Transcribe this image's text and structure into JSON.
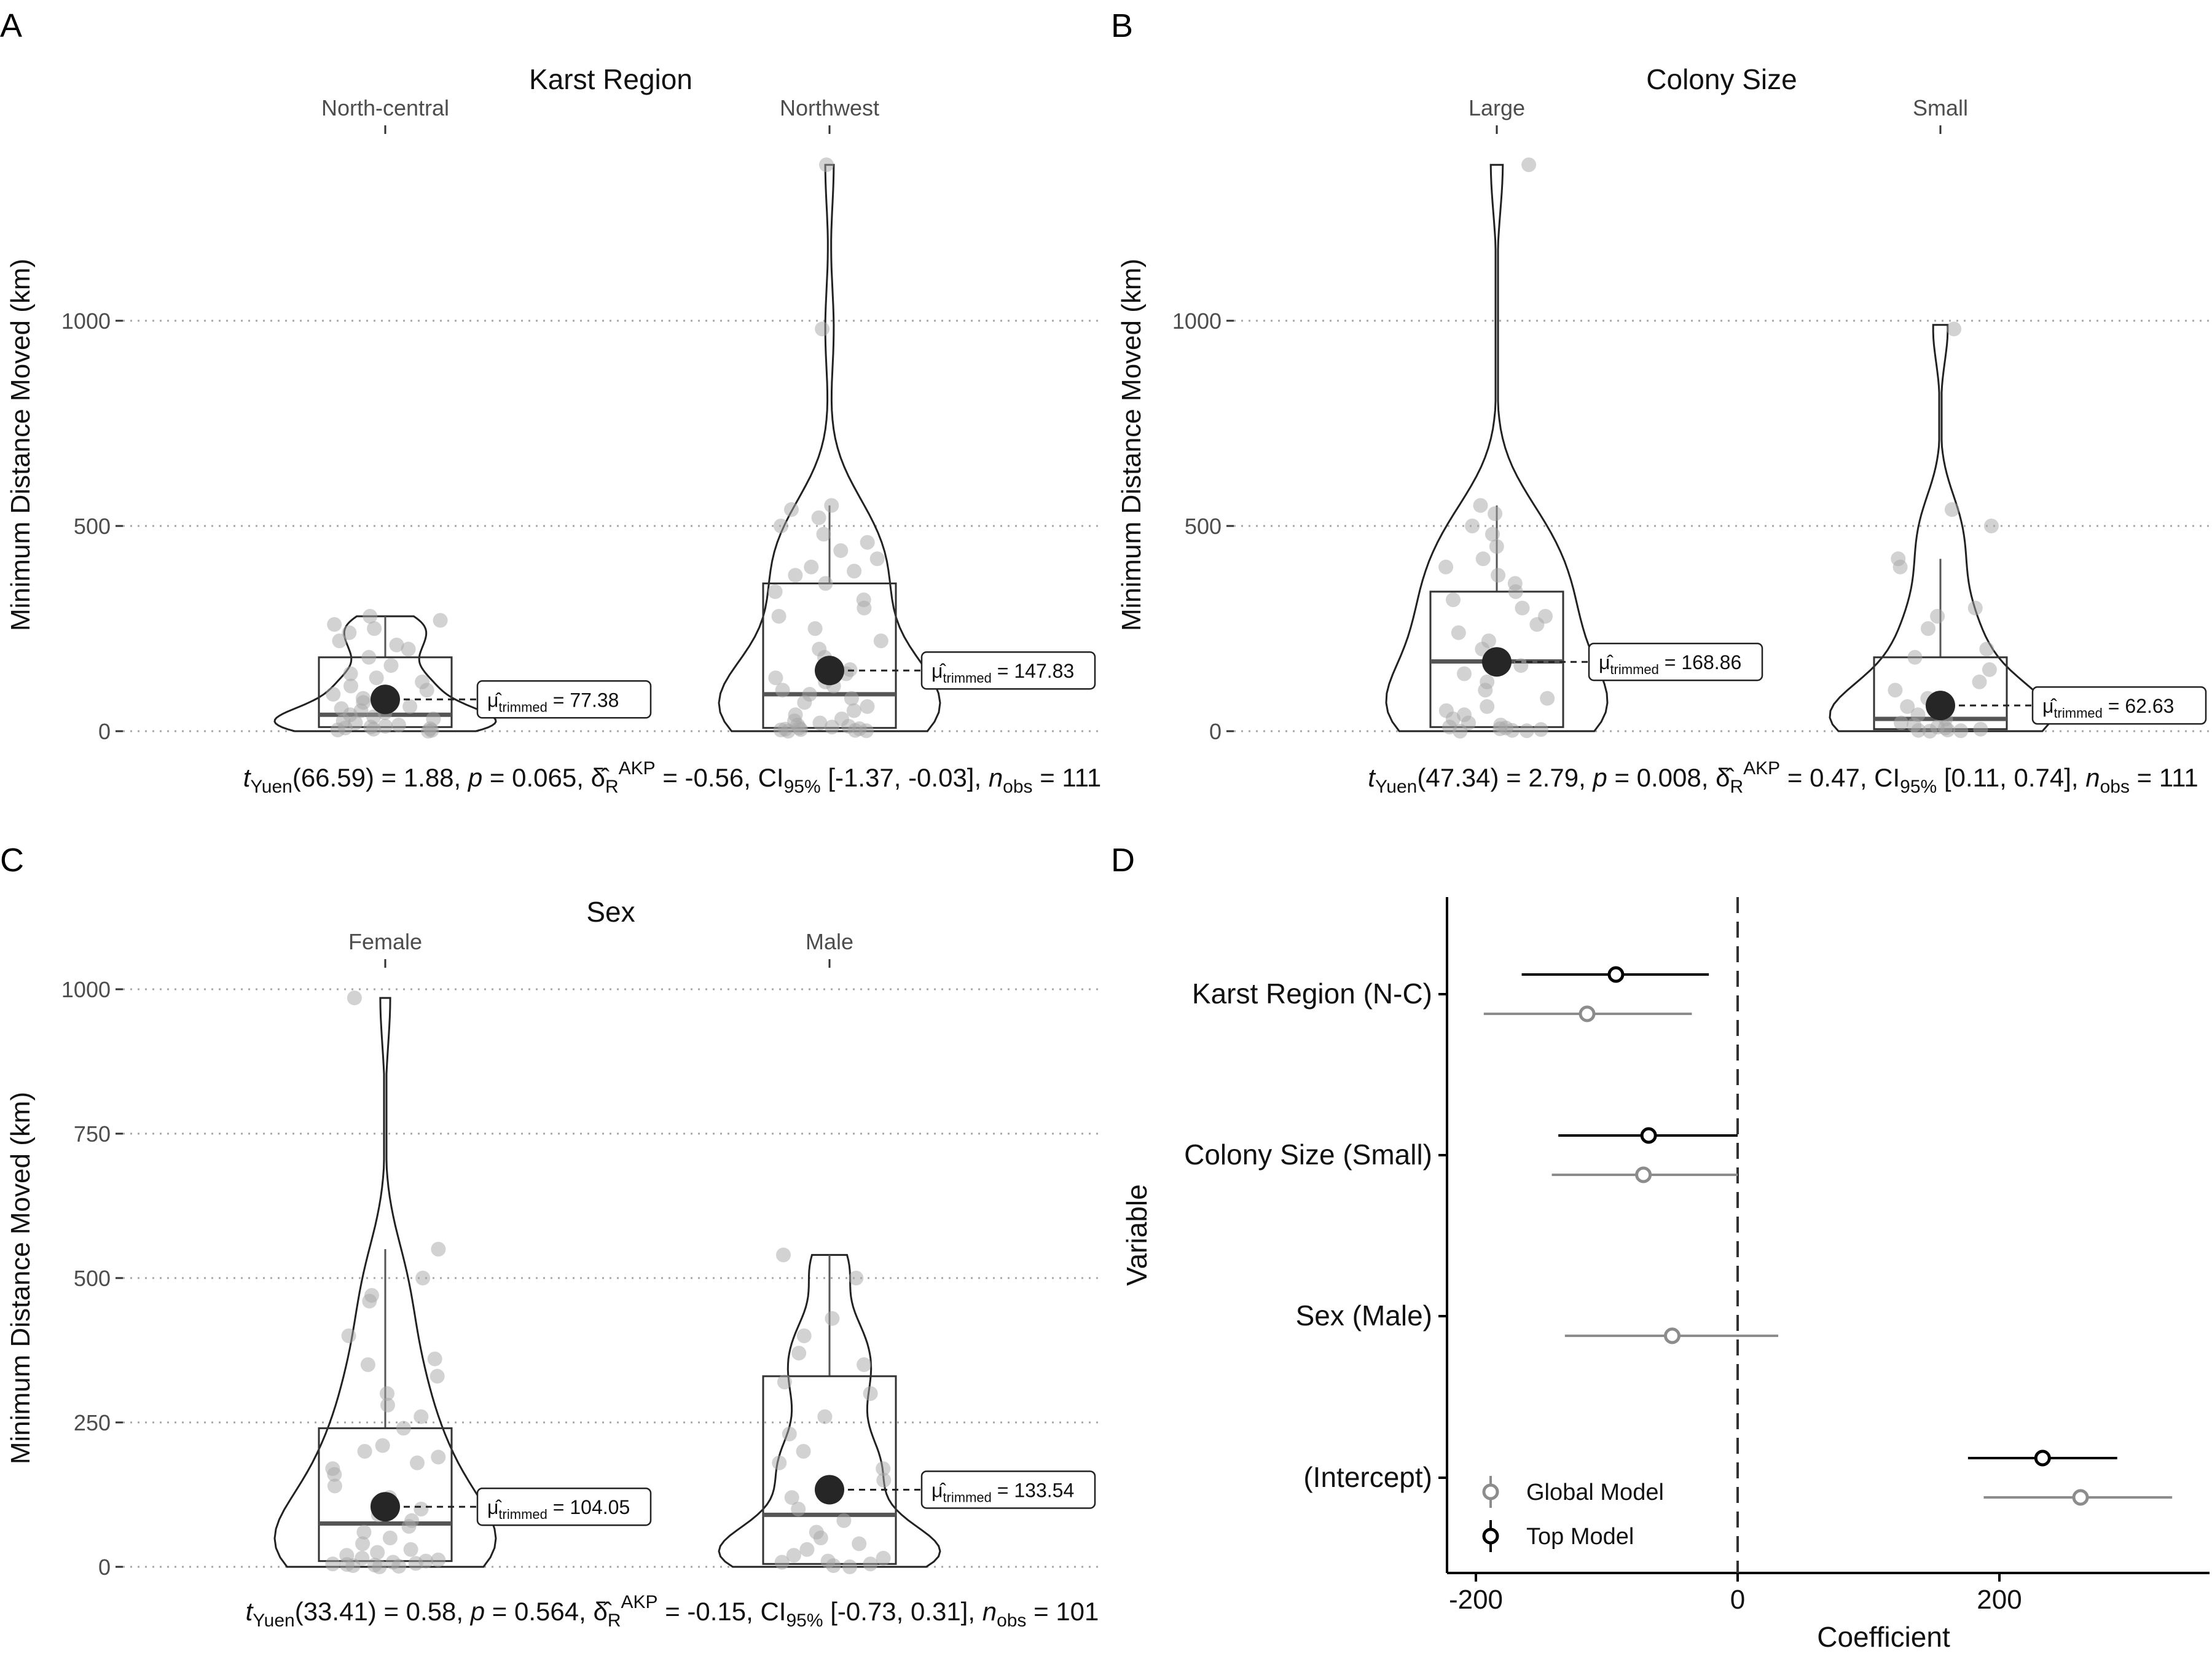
{
  "figure": {
    "panel_letters": [
      "A",
      "B",
      "C",
      "D"
    ]
  },
  "colors": {
    "point": "#a6a6a6",
    "mean": "#262626",
    "box": "#333333",
    "median": "#555555",
    "grid": "#a8a8a8",
    "global_model": "#8c8c8c",
    "top_model": "#000000"
  },
  "chart_data": [
    {
      "type": "violin-box",
      "panel": "A",
      "title": "Karst Region",
      "ylabel": "Minimum Distance Moved (km)",
      "ylim": [
        0,
        1400
      ],
      "yticks": [
        0,
        500,
        1000
      ],
      "grid": "horizontal-dotted",
      "categories": [
        "North-central",
        "Northwest"
      ],
      "box": [
        {
          "q1": 10,
          "median": 40,
          "q3": 180,
          "whisker_high": 280
        },
        {
          "q1": 8,
          "median": 90,
          "q3": 360,
          "whisker_high": 550
        }
      ],
      "violin_max": [
        280,
        1380
      ],
      "trimmed_means": [
        77.38,
        147.83
      ],
      "mean_labels": [
        "= 77.38",
        "= 147.83"
      ],
      "points": [
        [
          0,
          2,
          3,
          5,
          6,
          8,
          10,
          12,
          15,
          20,
          25,
          30,
          35,
          40,
          45,
          50,
          55,
          60,
          70,
          80,
          90,
          100,
          110,
          120,
          130,
          140,
          160,
          180,
          200,
          210,
          220,
          240,
          250,
          260,
          270,
          280
        ],
        [
          0,
          1,
          2,
          3,
          4,
          5,
          6,
          8,
          10,
          12,
          15,
          20,
          25,
          30,
          40,
          50,
          60,
          70,
          80,
          90,
          100,
          110,
          120,
          130,
          140,
          150,
          160,
          180,
          200,
          220,
          250,
          280,
          300,
          320,
          340,
          360,
          380,
          390,
          400,
          420,
          440,
          460,
          480,
          500,
          520,
          540,
          550,
          980,
          1380
        ]
      ],
      "statistic": {
        "t_sub": "Yuen",
        "df": "66.59",
        "t": "1.88",
        "p": "0.065",
        "delta": "-0.56",
        "ci": "[-1.37, -0.03]",
        "n": "111"
      }
    },
    {
      "type": "violin-box",
      "panel": "B",
      "title": "Colony Size",
      "ylabel": "Minimum Distance Moved (km)",
      "ylim": [
        0,
        1400
      ],
      "yticks": [
        0,
        500,
        1000
      ],
      "grid": "horizontal-dotted",
      "categories": [
        "Large",
        "Small"
      ],
      "box": [
        {
          "q1": 10,
          "median": 170,
          "q3": 340,
          "whisker_high": 550
        },
        {
          "q1": 5,
          "median": 30,
          "q3": 180,
          "whisker_high": 420
        }
      ],
      "violin_max": [
        1380,
        990
      ],
      "trimmed_means": [
        168.86,
        62.63
      ],
      "mean_labels": [
        "= 168.86",
        "= 62.63"
      ],
      "points": [
        [
          0,
          1,
          2,
          4,
          6,
          8,
          10,
          15,
          20,
          30,
          40,
          50,
          60,
          80,
          100,
          120,
          140,
          160,
          180,
          200,
          220,
          240,
          260,
          280,
          300,
          320,
          340,
          360,
          380,
          400,
          420,
          450,
          480,
          500,
          530,
          550,
          1380
        ],
        [
          0,
          1,
          2,
          3,
          5,
          8,
          10,
          15,
          20,
          30,
          40,
          50,
          60,
          80,
          100,
          120,
          150,
          180,
          200,
          250,
          280,
          300,
          400,
          420,
          500,
          540,
          980
        ]
      ],
      "statistic": {
        "t_sub": "Yuen",
        "df": "47.34",
        "t": "2.79",
        "p": "0.008",
        "delta": "0.47",
        "ci": "[0.11, 0.74]",
        "n": "111"
      }
    },
    {
      "type": "violin-box",
      "panel": "C",
      "title": "Sex",
      "ylabel": "Minimum Distance Moved (km)",
      "ylim": [
        0,
        1000
      ],
      "yticks": [
        0,
        250,
        500,
        750,
        1000
      ],
      "grid": "horizontal-dotted",
      "categories": [
        "Female",
        "Male"
      ],
      "box": [
        {
          "q1": 10,
          "median": 75,
          "q3": 240,
          "whisker_high": 550
        },
        {
          "q1": 5,
          "median": 90,
          "q3": 330,
          "whisker_high": 540
        }
      ],
      "violin_max": [
        985,
        540
      ],
      "trimmed_means": [
        104.05,
        133.54
      ],
      "mean_labels": [
        "= 104.05",
        "= 133.54"
      ],
      "points": [
        [
          0,
          1,
          2,
          3,
          4,
          5,
          6,
          8,
          10,
          12,
          15,
          20,
          25,
          30,
          40,
          50,
          60,
          70,
          80,
          90,
          100,
          110,
          120,
          140,
          160,
          170,
          180,
          190,
          200,
          210,
          240,
          260,
          280,
          300,
          330,
          350,
          360,
          400,
          460,
          470,
          500,
          550,
          985
        ],
        [
          0,
          2,
          5,
          8,
          10,
          15,
          20,
          30,
          40,
          50,
          60,
          80,
          100,
          120,
          150,
          170,
          180,
          200,
          230,
          260,
          300,
          320,
          350,
          370,
          400,
          430,
          500,
          540
        ]
      ],
      "statistic": {
        "t_sub": "Yuen",
        "df": "33.41",
        "t": "0.58",
        "p": "0.564",
        "delta": "-0.15",
        "ci": "[-0.73, 0.31]",
        "n": "101"
      }
    },
    {
      "type": "coefficient-plot",
      "panel": "D",
      "xlabel": "Coefficient",
      "ylabel": "Variable",
      "xlim": [
        -200,
        360
      ],
      "xticks": [
        -200,
        0,
        200
      ],
      "reference_line": 0,
      "categories": [
        "Karst Region (N-C)",
        "Colony Size (Small)",
        "Sex (Male)",
        "(Intercept)"
      ],
      "series": [
        {
          "name": "Top Model",
          "estimates": [
            -93,
            -68,
            null,
            233
          ],
          "lower": [
            -165,
            -137,
            null,
            176
          ],
          "upper": [
            -22,
            0,
            null,
            290
          ]
        },
        {
          "name": "Global Model",
          "estimates": [
            -115,
            -72,
            -50,
            262
          ],
          "lower": [
            -194,
            -142,
            -132,
            188
          ],
          "upper": [
            -35,
            0,
            31,
            332
          ]
        }
      ],
      "legend_order": [
        "Global Model",
        "Top Model"
      ],
      "legend_position": "bottom-left"
    }
  ]
}
